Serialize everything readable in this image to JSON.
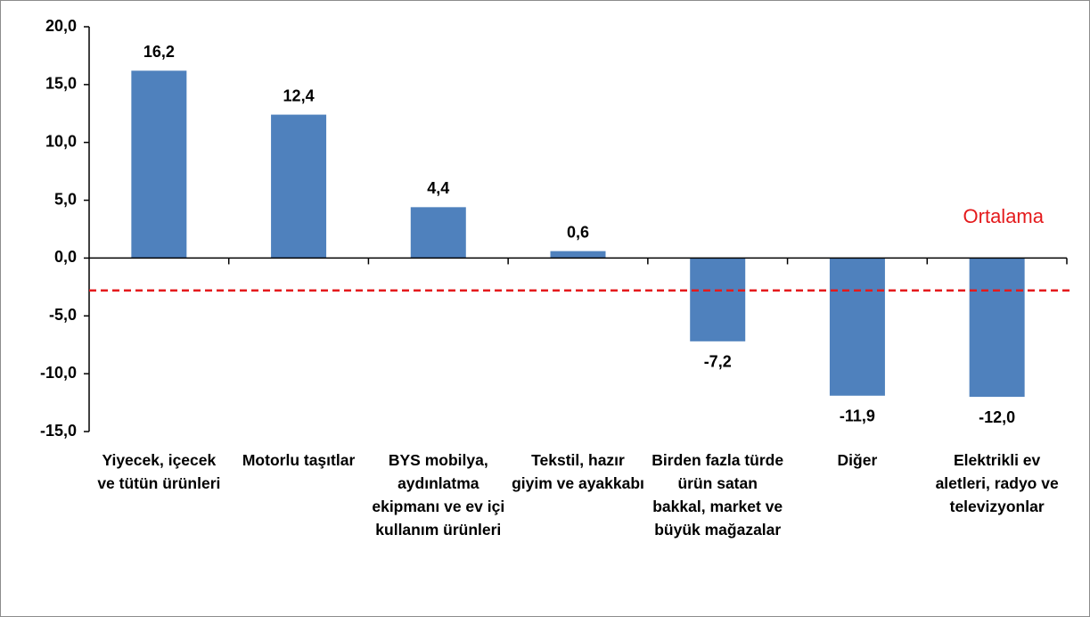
{
  "chart_data": {
    "type": "bar",
    "categories": [
      "Yiyecek, içecek ve tütün ürünleri",
      "Motorlu taşıtlar",
      "BYS mobilya, aydınlatma ekipmanı ve ev içi kullanım ürünleri",
      "Tekstil, hazır giyim ve ayakkabı",
      "Birden fazla türde ürün satan bakkal, market ve büyük mağazalar",
      "Diğer",
      "Elektrikli ev aletleri, radyo ve televizyonlar"
    ],
    "values": [
      16.2,
      12.4,
      4.4,
      0.6,
      -7.2,
      -11.9,
      -12.0
    ],
    "value_labels": [
      "16,2",
      "12,4",
      "4,4",
      "0,6",
      "-7,2",
      "-11,9",
      "-12,0"
    ],
    "color": "#4f81bd",
    "ylim": [
      -15,
      20
    ],
    "yticks": [
      {
        "value": -15,
        "label": "-15,0"
      },
      {
        "value": -10,
        "label": "-10,0"
      },
      {
        "value": -5,
        "label": "-5,0"
      },
      {
        "value": 0,
        "label": "0,0"
      },
      {
        "value": 5,
        "label": "5,0"
      },
      {
        "value": 10,
        "label": "10,0"
      },
      {
        "value": 15,
        "label": "15,0"
      },
      {
        "value": 20,
        "label": "20,0"
      }
    ],
    "reference_line": {
      "label": "Ortalama",
      "value": -2.8,
      "color": "#e41a1c"
    },
    "grid": false
  }
}
